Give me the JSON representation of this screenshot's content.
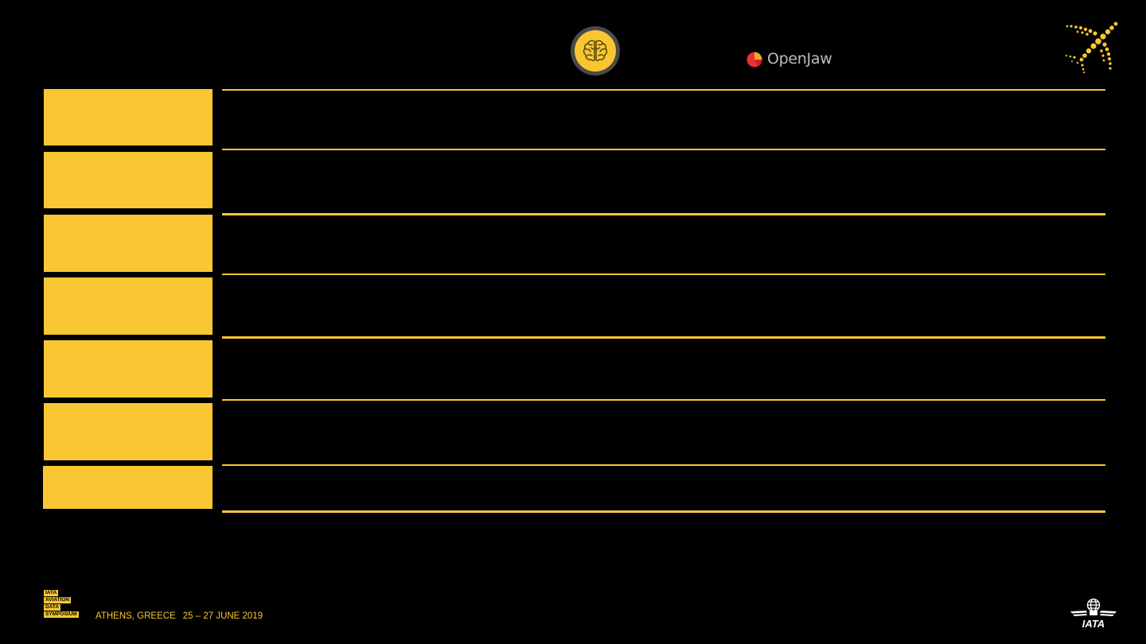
{
  "brand": {
    "accent_color": "#f8c732",
    "background_color": "#000000"
  },
  "header": {
    "brain_icon": "brain-icon",
    "openjaw_logo_text": "OpenJaw",
    "plane_logo_icon": "dotted-plane-icon"
  },
  "agenda": {
    "rows": [
      {
        "label": "",
        "text": ""
      },
      {
        "label": "",
        "text": ""
      },
      {
        "label": "",
        "text": ""
      },
      {
        "label": "",
        "text": ""
      },
      {
        "label": "",
        "text": ""
      },
      {
        "label": "",
        "text": ""
      },
      {
        "label": "",
        "text": ""
      }
    ]
  },
  "footer": {
    "event_badge_lines": [
      "IATA",
      "AVIATION",
      "DATA",
      "SYMPOSIUM"
    ],
    "location": "ATHENS, GREECE",
    "dates": "25 – 27 JUNE 2019",
    "iata_logo_text": "IATA"
  }
}
